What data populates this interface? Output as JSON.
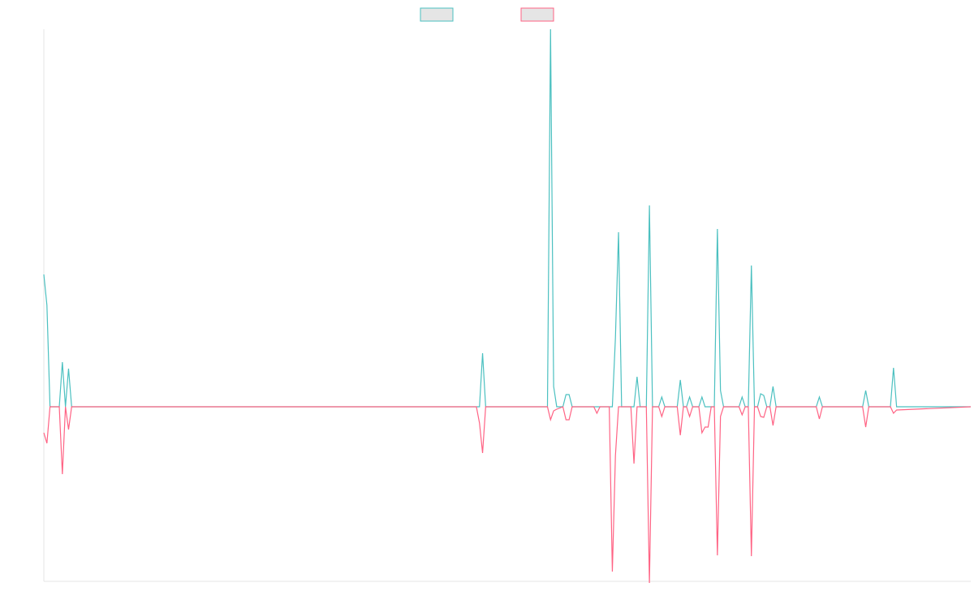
{
  "chart_data": {
    "type": "line",
    "title": "",
    "xlabel": "",
    "ylabel": "",
    "grid": false,
    "legend_position": "top-center",
    "x": [
      0,
      1,
      2,
      3,
      4,
      5,
      6,
      7,
      8,
      9,
      10,
      11,
      12,
      13,
      14,
      15,
      16,
      17,
      18,
      19,
      20,
      21,
      22,
      23,
      24,
      25,
      26,
      27,
      28,
      29,
      30,
      31,
      32,
      33,
      34,
      35,
      36,
      37,
      38,
      39,
      40,
      41,
      42,
      43,
      44,
      45,
      46,
      47,
      48,
      49,
      50,
      51,
      52,
      53,
      54,
      55,
      56,
      57,
      58,
      59,
      60,
      61,
      62,
      63,
      64,
      65,
      66,
      67,
      68,
      69,
      70,
      71,
      72,
      73,
      74,
      75,
      76,
      77,
      78,
      79,
      80,
      81,
      82,
      83,
      84,
      85,
      86,
      87,
      88,
      89,
      90,
      91,
      92,
      93,
      94,
      95,
      96,
      97,
      98,
      99,
      100,
      101,
      102,
      103,
      104,
      105,
      106,
      107,
      108,
      109,
      110,
      111,
      112,
      113,
      114,
      115,
      116,
      117,
      118,
      119,
      120,
      121,
      122,
      123,
      124,
      125,
      126,
      127,
      128,
      129,
      130,
      131,
      132,
      133,
      134,
      135,
      136,
      137,
      138,
      139,
      140,
      141,
      142,
      143,
      144,
      145,
      146,
      147,
      148,
      149,
      150,
      151,
      152,
      153,
      154,
      155,
      156,
      157,
      158,
      159,
      160,
      161,
      162,
      163,
      164,
      165,
      166,
      167,
      168,
      169,
      170,
      171,
      172,
      173,
      174,
      175,
      176,
      177,
      178,
      179,
      180,
      181,
      182,
      183,
      184,
      185,
      186,
      187,
      188,
      189,
      190,
      191,
      192,
      193,
      194,
      195,
      196,
      197,
      198,
      199,
      200,
      201,
      202,
      203,
      204,
      205,
      206,
      207,
      208,
      209,
      210,
      211,
      212,
      213,
      214,
      215,
      216,
      217,
      218,
      219,
      220,
      221,
      222,
      223,
      224,
      225,
      226,
      227,
      228,
      229,
      230,
      231,
      232,
      233,
      234,
      235,
      236,
      237,
      238,
      239,
      240,
      241,
      242,
      243,
      244,
      245,
      246,
      247,
      248,
      249,
      250,
      251,
      252,
      253,
      254,
      255,
      256,
      257,
      258,
      259,
      260,
      261,
      262,
      263,
      264,
      265,
      266,
      267,
      268,
      269,
      270,
      271,
      272,
      273,
      274,
      275,
      276,
      277,
      278,
      279,
      280,
      281,
      282,
      283,
      284,
      285,
      286,
      287,
      288,
      289,
      290,
      291,
      292,
      293,
      294,
      295,
      296,
      297,
      298,
      299,
      300
    ],
    "xlim": [
      0,
      300
    ],
    "ylim": [
      -215,
      465
    ],
    "series": [
      {
        "name": "",
        "color": "#4bc0c0",
        "fill": "#e5e5e5",
        "points": [
          [
            0,
            163
          ],
          [
            1,
            125
          ],
          [
            2,
            0
          ],
          [
            5,
            0
          ],
          [
            6,
            55
          ],
          [
            7,
            0
          ],
          [
            8,
            47
          ],
          [
            9,
            0
          ],
          [
            141,
            0
          ],
          [
            142,
            66
          ],
          [
            143,
            0
          ],
          [
            163,
            0
          ],
          [
            164,
            465
          ],
          [
            165,
            25
          ],
          [
            166,
            0
          ],
          [
            168,
            0
          ],
          [
            169,
            15
          ],
          [
            170,
            15
          ],
          [
            171,
            0
          ],
          [
            178,
            0
          ],
          [
            179,
            0
          ],
          [
            183,
            0
          ],
          [
            184,
            0
          ],
          [
            185,
            85
          ],
          [
            186,
            215
          ],
          [
            187,
            0
          ],
          [
            191,
            0
          ],
          [
            192,
            37
          ],
          [
            193,
            0
          ],
          [
            195,
            0
          ],
          [
            196,
            248
          ],
          [
            197,
            0
          ],
          [
            199,
            0
          ],
          [
            200,
            12
          ],
          [
            201,
            0
          ],
          [
            205,
            0
          ],
          [
            206,
            33
          ],
          [
            207,
            0
          ],
          [
            208,
            0
          ],
          [
            209,
            12
          ],
          [
            210,
            0
          ],
          [
            212,
            0
          ],
          [
            213,
            12
          ],
          [
            214,
            0
          ],
          [
            217,
            0
          ],
          [
            218,
            219
          ],
          [
            219,
            20
          ],
          [
            220,
            0
          ],
          [
            225,
            0
          ],
          [
            226,
            12
          ],
          [
            227,
            0
          ],
          [
            228,
            0
          ],
          [
            229,
            174
          ],
          [
            230,
            0
          ],
          [
            231,
            0
          ],
          [
            232,
            16
          ],
          [
            233,
            14
          ],
          [
            234,
            0
          ],
          [
            235,
            0
          ],
          [
            236,
            25
          ],
          [
            237,
            0
          ],
          [
            250,
            0
          ],
          [
            251,
            12
          ],
          [
            252,
            0
          ],
          [
            265,
            0
          ],
          [
            266,
            20
          ],
          [
            267,
            0
          ],
          [
            274,
            0
          ],
          [
            275,
            48
          ],
          [
            276,
            0
          ],
          [
            300,
            0
          ]
        ]
      },
      {
        "name": "",
        "color": "#ff6384",
        "fill": "#e5e5e5",
        "points": [
          [
            0,
            -32
          ],
          [
            1,
            -45
          ],
          [
            2,
            0
          ],
          [
            5,
            0
          ],
          [
            6,
            -83
          ],
          [
            7,
            0
          ],
          [
            8,
            -28
          ],
          [
            9,
            0
          ],
          [
            140,
            0
          ],
          [
            141,
            -20
          ],
          [
            142,
            -57
          ],
          [
            143,
            0
          ],
          [
            163,
            0
          ],
          [
            164,
            -16
          ],
          [
            165,
            -5
          ],
          [
            166,
            -3
          ],
          [
            168,
            0
          ],
          [
            169,
            -16
          ],
          [
            170,
            -16
          ],
          [
            171,
            0
          ],
          [
            178,
            0
          ],
          [
            179,
            -8
          ],
          [
            180,
            0
          ],
          [
            183,
            0
          ],
          [
            184,
            -203
          ],
          [
            185,
            -60
          ],
          [
            186,
            0
          ],
          [
            190,
            0
          ],
          [
            191,
            -70
          ],
          [
            192,
            0
          ],
          [
            195,
            0
          ],
          [
            196,
            -217
          ],
          [
            197,
            0
          ],
          [
            199,
            0
          ],
          [
            200,
            -12
          ],
          [
            201,
            0
          ],
          [
            205,
            0
          ],
          [
            206,
            -35
          ],
          [
            207,
            0
          ],
          [
            208,
            0
          ],
          [
            209,
            -12
          ],
          [
            210,
            0
          ],
          [
            212,
            0
          ],
          [
            213,
            -32
          ],
          [
            214,
            -25
          ],
          [
            215,
            -25
          ],
          [
            216,
            0
          ],
          [
            217,
            0
          ],
          [
            218,
            -183
          ],
          [
            219,
            -12
          ],
          [
            220,
            0
          ],
          [
            225,
            0
          ],
          [
            226,
            -10
          ],
          [
            227,
            0
          ],
          [
            228,
            0
          ],
          [
            229,
            -184
          ],
          [
            230,
            0
          ],
          [
            231,
            0
          ],
          [
            232,
            -12
          ],
          [
            233,
            -13
          ],
          [
            234,
            0
          ],
          [
            235,
            0
          ],
          [
            236,
            -23
          ],
          [
            237,
            0
          ],
          [
            250,
            0
          ],
          [
            251,
            -15
          ],
          [
            252,
            0
          ],
          [
            265,
            0
          ],
          [
            266,
            -25
          ],
          [
            267,
            0
          ],
          [
            274,
            0
          ],
          [
            275,
            -8
          ],
          [
            276,
            -4
          ],
          [
            300,
            0
          ]
        ]
      }
    ]
  }
}
